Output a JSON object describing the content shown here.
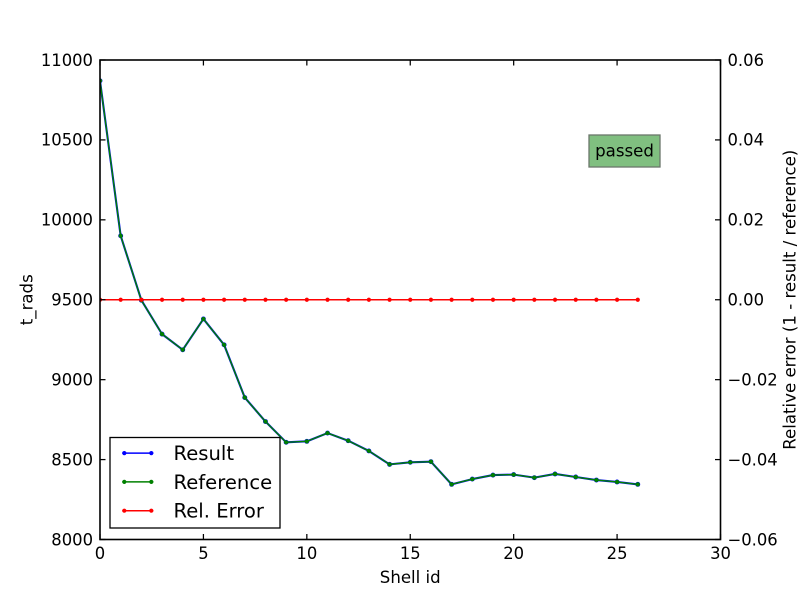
{
  "chart_data": {
    "type": "line",
    "title": "",
    "xlabel": "Shell id",
    "ylabel_left": "t_rads",
    "ylabel_right": "Relative error (1 - result / reference)",
    "x": [
      0,
      1,
      2,
      3,
      4,
      5,
      6,
      7,
      8,
      9,
      10,
      11,
      12,
      13,
      14,
      15,
      16,
      17,
      18,
      19,
      20,
      21,
      22,
      23,
      24,
      25,
      26
    ],
    "series": [
      {
        "name": "Result",
        "color": "#0000ff",
        "axis": "left",
        "values": [
          10870,
          9900,
          9497,
          9285,
          9187,
          9380,
          9218,
          8888,
          8738,
          8608,
          8614,
          8666,
          8618,
          8554,
          8470,
          8483,
          8487,
          8345,
          8378,
          8403,
          8406,
          8387,
          8410,
          8391,
          8372,
          8360,
          8345
        ]
      },
      {
        "name": "Reference",
        "color": "#008000",
        "axis": "left",
        "values": [
          10870,
          9900,
          9497,
          9285,
          9187,
          9380,
          9218,
          8888,
          8738,
          8608,
          8614,
          8666,
          8618,
          8554,
          8470,
          8483,
          8487,
          8345,
          8378,
          8403,
          8406,
          8387,
          8410,
          8391,
          8372,
          8360,
          8345
        ]
      },
      {
        "name": "Rel. Error",
        "color": "#ff0000",
        "axis": "right",
        "values": [
          0,
          0,
          0,
          0,
          0,
          0,
          0,
          0,
          0,
          0,
          0,
          0,
          0,
          0,
          0,
          0,
          0,
          0,
          0,
          0,
          0,
          0,
          0,
          0,
          0,
          0,
          0
        ]
      }
    ],
    "axes": {
      "x": {
        "min": 0,
        "max": 30,
        "ticks": [
          0,
          5,
          10,
          15,
          20,
          25,
          30
        ],
        "ticklabels": [
          "0",
          "5",
          "10",
          "15",
          "20",
          "25",
          "30"
        ]
      },
      "y_left": {
        "min": 8000,
        "max": 11000,
        "ticks": [
          8000,
          8500,
          9000,
          9500,
          10000,
          10500,
          11000
        ],
        "ticklabels": [
          "8000",
          "8500",
          "9000",
          "9500",
          "10000",
          "10500",
          "11000"
        ]
      },
      "y_right": {
        "min": -0.06,
        "max": 0.06,
        "ticks": [
          -0.06,
          -0.04,
          -0.02,
          0,
          0.02,
          0.04,
          0.06
        ],
        "ticklabels": [
          "−0.06",
          "−0.04",
          "−0.02",
          "0.00",
          "0.02",
          "0.04",
          "0.06"
        ]
      }
    },
    "grid": false,
    "legend": {
      "position": "lower left",
      "entries": [
        {
          "label": "Result",
          "color": "#0000ff"
        },
        {
          "label": "Reference",
          "color": "#008000"
        },
        {
          "label": "Rel. Error",
          "color": "#ff0000"
        }
      ]
    },
    "annotation": {
      "text": "passed",
      "fill": "#80bf80",
      "border": "#6b766b",
      "text_color": "#000000"
    }
  }
}
